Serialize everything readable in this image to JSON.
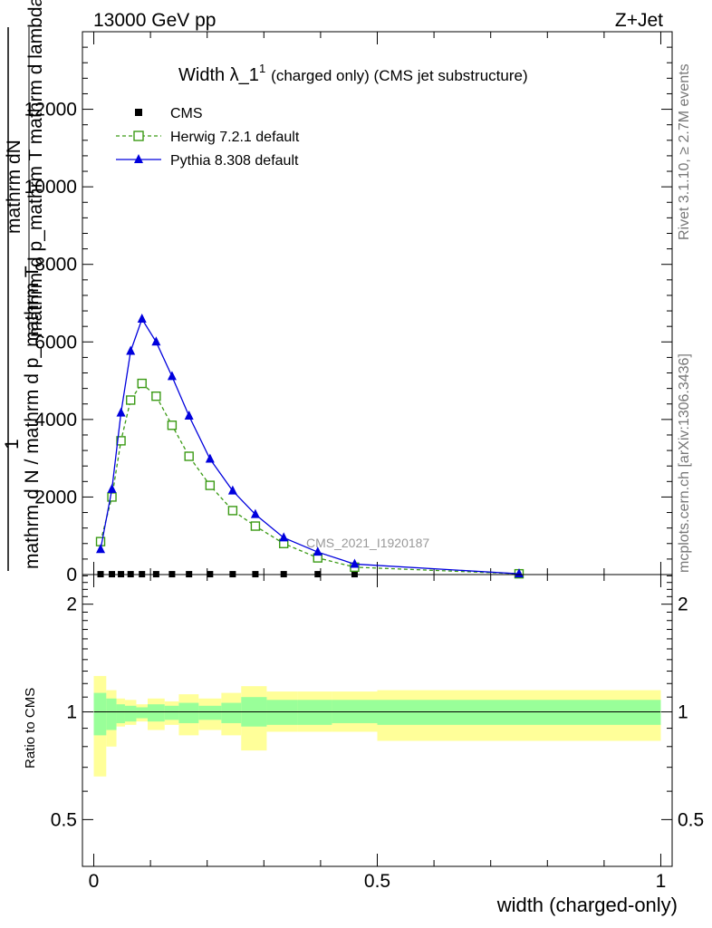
{
  "header": {
    "left": "13000 GeV pp",
    "right": "Z+Jet"
  },
  "side_labels": {
    "rivet": "Rivet 3.1.10, ≥ 2.7M events",
    "mcplots": "mcplots.cern.ch [arXiv:1306.3436]"
  },
  "watermark": "CMS_2021_I1920187",
  "chart_data": [
    {
      "type": "line",
      "title": "Width λ_1",
      "title_sup": "1",
      "subtitle": "(charged only) (CMS jet substructure)",
      "ylabel_top": "mathrm dN",
      "ylabel_bottom": "mathrm d p_mathrm T mathrm d lambda",
      "ylabel_frac_one": "1",
      "ylabel_frac_den": "mathrm d N / mathrm d p_mathrm T",
      "xlim": [
        -0.02,
        1.02
      ],
      "ylim": [
        0,
        14000
      ],
      "yticks": [
        0,
        2000,
        4000,
        6000,
        8000,
        10000,
        12000
      ],
      "ytick_labels": [
        "0",
        "2000",
        "4000",
        "6000",
        "8000",
        "10000",
        "12000"
      ],
      "legend_placement": "top-left",
      "series": [
        {
          "name": "CMS",
          "color": "#000000",
          "marker": "square",
          "x": [
            0.012,
            0.032,
            0.048,
            0.065,
            0.085,
            0.11,
            0.138,
            0.168,
            0.205,
            0.245,
            0.285,
            0.335,
            0.395,
            0.46,
            0.75
          ],
          "y": [
            10,
            10,
            10,
            10,
            10,
            10,
            10,
            10,
            10,
            10,
            10,
            10,
            10,
            10,
            10
          ]
        },
        {
          "name": "Herwig 7.2.1 default",
          "color": "#3a9a14",
          "marker": "open-square",
          "dashed": true,
          "x": [
            0.012,
            0.032,
            0.048,
            0.065,
            0.085,
            0.11,
            0.138,
            0.168,
            0.205,
            0.245,
            0.285,
            0.335,
            0.395,
            0.46,
            0.75
          ],
          "y": [
            850,
            2000,
            3450,
            4500,
            4930,
            4600,
            3850,
            3050,
            2300,
            1650,
            1250,
            800,
            430,
            190,
            20
          ]
        },
        {
          "name": "Pythia 8.308 default",
          "color": "#0000dd",
          "marker": "triangle",
          "x": [
            0.012,
            0.032,
            0.048,
            0.065,
            0.085,
            0.11,
            0.138,
            0.168,
            0.205,
            0.245,
            0.285,
            0.335,
            0.395,
            0.46,
            0.75
          ],
          "y": [
            650,
            2200,
            4170,
            5760,
            6590,
            6000,
            5110,
            4090,
            2980,
            2160,
            1550,
            950,
            580,
            270,
            20
          ]
        }
      ]
    },
    {
      "type": "area",
      "ylabel": "Ratio to CMS",
      "xlabel": "width (charged-only)",
      "xlim": [
        -0.02,
        1.02
      ],
      "ylim": [
        0.37,
        2.42
      ],
      "xticks": [
        0,
        0.5,
        1
      ],
      "xtick_labels": [
        "0",
        "0.5",
        "1"
      ],
      "yticks": [
        0.5,
        1,
        2
      ],
      "ytick_labels": [
        "0.5",
        "1",
        "2"
      ],
      "bins": [
        {
          "lo": 0.0,
          "hi": 0.022,
          "inner": [
            0.86,
            1.13
          ],
          "outer": [
            0.66,
            1.26
          ]
        },
        {
          "lo": 0.022,
          "hi": 0.04,
          "inner": [
            0.89,
            1.09
          ],
          "outer": [
            0.8,
            1.15
          ]
        },
        {
          "lo": 0.04,
          "hi": 0.055,
          "inner": [
            0.93,
            1.05
          ],
          "outer": [
            0.91,
            1.09
          ]
        },
        {
          "lo": 0.055,
          "hi": 0.075,
          "inner": [
            0.94,
            1.04
          ],
          "outer": [
            0.92,
            1.08
          ]
        },
        {
          "lo": 0.075,
          "hi": 0.095,
          "inner": [
            0.96,
            1.03
          ],
          "outer": [
            0.94,
            1.05
          ]
        },
        {
          "lo": 0.095,
          "hi": 0.125,
          "inner": [
            0.94,
            1.05
          ],
          "outer": [
            0.89,
            1.09
          ]
        },
        {
          "lo": 0.125,
          "hi": 0.15,
          "inner": [
            0.95,
            1.04
          ],
          "outer": [
            0.92,
            1.07
          ]
        },
        {
          "lo": 0.15,
          "hi": 0.185,
          "inner": [
            0.93,
            1.06
          ],
          "outer": [
            0.86,
            1.12
          ]
        },
        {
          "lo": 0.185,
          "hi": 0.225,
          "inner": [
            0.95,
            1.04
          ],
          "outer": [
            0.89,
            1.09
          ]
        },
        {
          "lo": 0.225,
          "hi": 0.26,
          "inner": [
            0.93,
            1.06
          ],
          "outer": [
            0.86,
            1.13
          ]
        },
        {
          "lo": 0.26,
          "hi": 0.305,
          "inner": [
            0.91,
            1.1
          ],
          "outer": [
            0.78,
            1.18
          ]
        },
        {
          "lo": 0.305,
          "hi": 0.36,
          "inner": [
            0.92,
            1.08
          ],
          "outer": [
            0.88,
            1.14
          ]
        },
        {
          "lo": 0.36,
          "hi": 0.42,
          "inner": [
            0.92,
            1.08
          ],
          "outer": [
            0.88,
            1.14
          ]
        },
        {
          "lo": 0.42,
          "hi": 0.5,
          "inner": [
            0.93,
            1.08
          ],
          "outer": [
            0.88,
            1.14
          ]
        },
        {
          "lo": 0.5,
          "hi": 1.0,
          "inner": [
            0.92,
            1.08
          ],
          "outer": [
            0.83,
            1.15
          ]
        }
      ],
      "inner_color": "#99ff99",
      "outer_color": "#ffff99"
    }
  ]
}
